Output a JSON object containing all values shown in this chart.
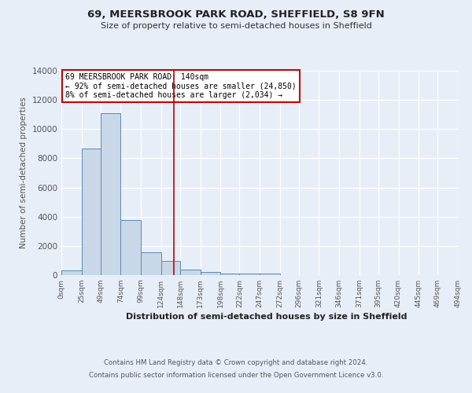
{
  "title1": "69, MEERSBROOK PARK ROAD, SHEFFIELD, S8 9FN",
  "title2": "Size of property relative to semi-detached houses in Sheffield",
  "xlabel": "Distribution of semi-detached houses by size in Sheffield",
  "ylabel": "Number of semi-detached properties",
  "footnote1": "Contains HM Land Registry data © Crown copyright and database right 2024.",
  "footnote2": "Contains public sector information licensed under the Open Government Licence v3.0.",
  "annotation_line1": "69 MEERSBROOK PARK ROAD: 140sqm",
  "annotation_line2": "← 92% of semi-detached houses are smaller (24,850)",
  "annotation_line3": "8% of semi-detached houses are larger (2,034) →",
  "property_size": 140,
  "bar_edges": [
    0,
    25,
    49,
    74,
    99,
    124,
    148,
    173,
    198,
    222,
    247,
    272,
    296,
    321,
    346,
    371,
    395,
    420,
    445,
    469,
    494
  ],
  "bar_heights": [
    300,
    8650,
    11100,
    3750,
    1550,
    950,
    400,
    200,
    130,
    100,
    100,
    0,
    0,
    0,
    0,
    0,
    0,
    0,
    0,
    0
  ],
  "bar_color": "#c8d8e8",
  "bar_edge_color": "#5a8ab0",
  "vline_color": "#cc0000",
  "vline_x": 140,
  "ylim": [
    0,
    14000
  ],
  "yticks": [
    0,
    2000,
    4000,
    6000,
    8000,
    10000,
    12000,
    14000
  ],
  "background_color": "#e8eef8",
  "grid_color": "#ffffff",
  "annotation_box_color": "#ffffff",
  "annotation_box_edge": "#cc0000"
}
